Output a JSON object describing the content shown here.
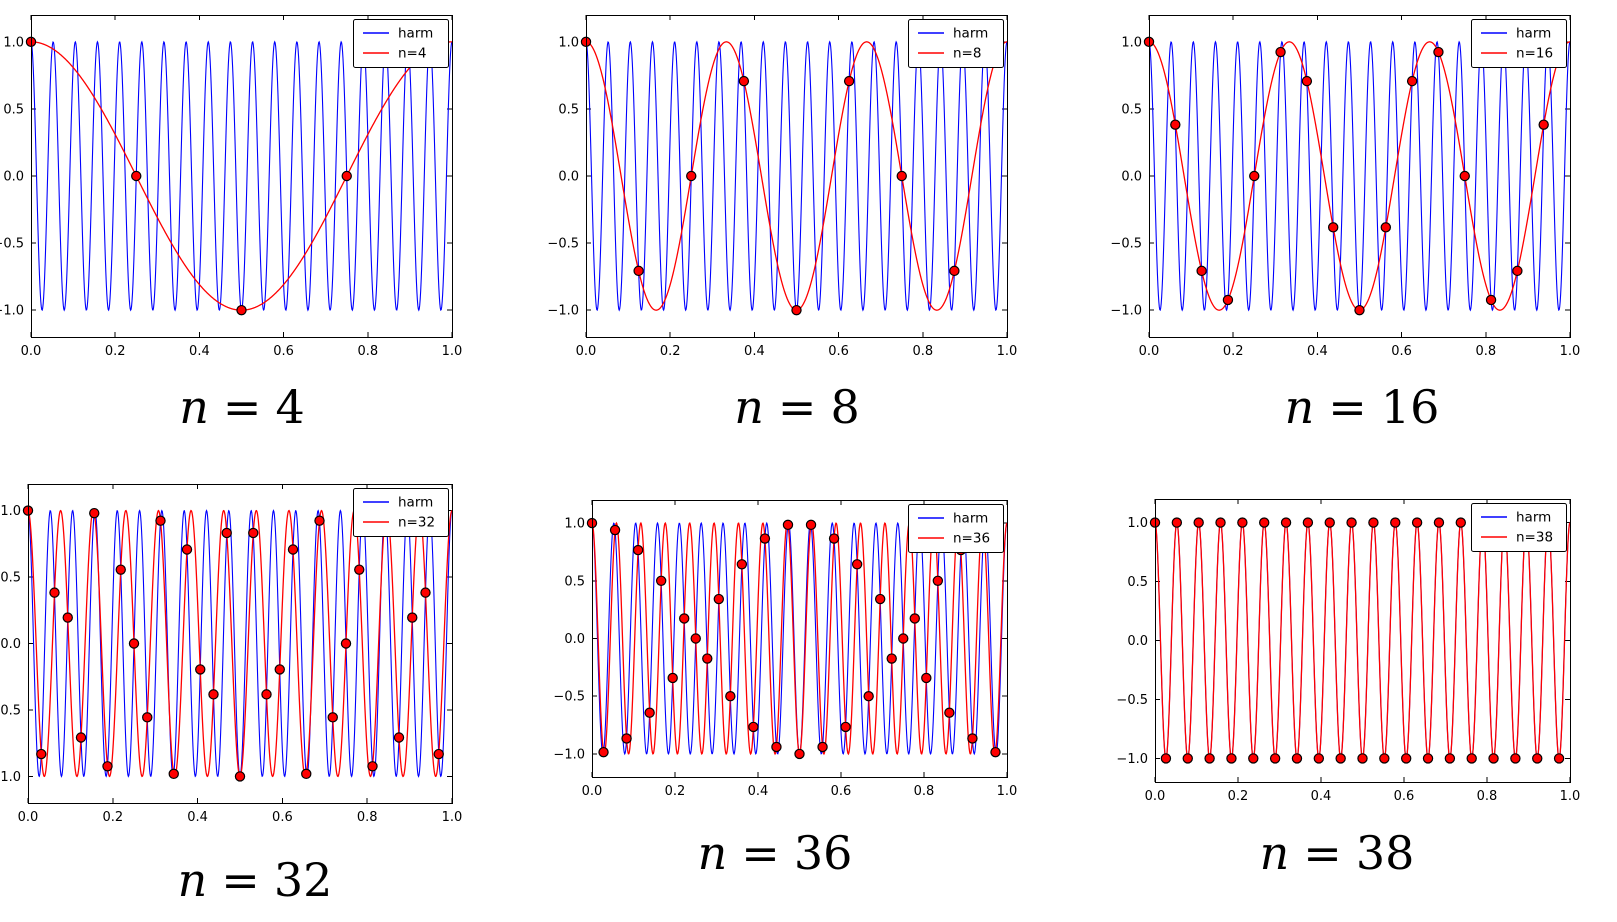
{
  "figure": {
    "background": "#ffffff",
    "harm_color": "#0000ff",
    "alias_color": "#ff0000",
    "marker_face": "#ff0000",
    "marker_edge": "#000000",
    "harm_frequency": 19,
    "signal_formula": "y = cos(2*pi*f*x)"
  },
  "axes": {
    "xlim": [
      0,
      1
    ],
    "ylim": [
      -1.2,
      1.2
    ],
    "xtick_values": [
      0,
      0.2,
      0.4,
      0.6,
      0.8,
      1.0
    ],
    "xtick_labels": [
      "0.0",
      "0.2",
      "0.4",
      "0.6",
      "0.8",
      "1.0"
    ],
    "ytick_values": [
      -1.0,
      -0.5,
      0,
      0.5,
      1.0
    ],
    "ytick_labels": [
      "−1.0",
      "−0.5",
      "0.0",
      "0.5",
      "1.0"
    ],
    "grid": false,
    "legend_position": "upper right"
  },
  "chart_data": [
    {
      "type": "line",
      "caption_var": "n",
      "caption_eq": "=",
      "caption_val": "4",
      "n_samples": 4,
      "harm_freq": 19,
      "alias_freq": 1,
      "legend": [
        "harm",
        "n=4"
      ],
      "series": [
        {
          "name": "harm",
          "color": "#0000ff",
          "formula": "y = cos(2*pi*19*x)"
        },
        {
          "name": "n=4",
          "color": "#ff0000",
          "formula": "y = cos(2*pi*1*x)",
          "samples": "red dots at x=k/4, y=cos(2*pi*19*k/4), k=0..3"
        }
      ]
    },
    {
      "type": "line",
      "caption_var": "n",
      "caption_eq": "=",
      "caption_val": "8",
      "n_samples": 8,
      "harm_freq": 19,
      "alias_freq": 3,
      "legend": [
        "harm",
        "n=8"
      ],
      "series": [
        {
          "name": "harm",
          "color": "#0000ff",
          "formula": "y = cos(2*pi*19*x)"
        },
        {
          "name": "n=8",
          "color": "#ff0000",
          "formula": "y = cos(2*pi*3*x)",
          "samples": "red dots at x=k/8, y=cos(2*pi*19*k/8), k=0..7"
        }
      ]
    },
    {
      "type": "line",
      "caption_var": "n",
      "caption_eq": "=",
      "caption_val": "16",
      "n_samples": 16,
      "harm_freq": 19,
      "alias_freq": 3,
      "legend": [
        "harm",
        "n=16"
      ],
      "series": [
        {
          "name": "harm",
          "color": "#0000ff",
          "formula": "y = cos(2*pi*19*x)"
        },
        {
          "name": "n=16",
          "color": "#ff0000",
          "formula": "y = cos(2*pi*3*x)",
          "samples": "red dots at x=k/16, y=cos(2*pi*19*k/16), k=0..15"
        }
      ]
    },
    {
      "type": "line",
      "caption_var": "n",
      "caption_eq": "=",
      "caption_val": "32",
      "n_samples": 32,
      "harm_freq": 19,
      "alias_freq": 13,
      "legend": [
        "harm",
        "n=32"
      ],
      "series": [
        {
          "name": "harm",
          "color": "#0000ff",
          "formula": "y = cos(2*pi*19*x)"
        },
        {
          "name": "n=32",
          "color": "#ff0000",
          "formula": "y = cos(2*pi*13*x)",
          "samples": "red dots at x=k/32, y=cos(2*pi*19*k/32), k=0..31"
        }
      ]
    },
    {
      "type": "line",
      "caption_var": "n",
      "caption_eq": "=",
      "caption_val": "36",
      "n_samples": 36,
      "harm_freq": 19,
      "alias_freq": 17,
      "legend": [
        "harm",
        "n=36"
      ],
      "series": [
        {
          "name": "harm",
          "color": "#0000ff",
          "formula": "y = cos(2*pi*19*x)"
        },
        {
          "name": "n=36",
          "color": "#ff0000",
          "formula": "y = cos(2*pi*17*x)",
          "samples": "red dots at x=k/36, y=cos(2*pi*19*k/36), k=0..35"
        }
      ]
    },
    {
      "type": "line",
      "caption_var": "n",
      "caption_eq": "=",
      "caption_val": "38",
      "n_samples": 38,
      "harm_freq": 19,
      "alias_freq": 19,
      "legend": [
        "harm",
        "n=38"
      ],
      "series": [
        {
          "name": "harm",
          "color": "#0000ff",
          "formula": "y = cos(2*pi*19*x)"
        },
        {
          "name": "n=38",
          "color": "#ff0000",
          "formula": "y = cos(2*pi*19*x)",
          "samples": "red dots at x=k/38, y=cos(2*pi*19*k/38)=±1, k=0..37"
        }
      ]
    }
  ]
}
